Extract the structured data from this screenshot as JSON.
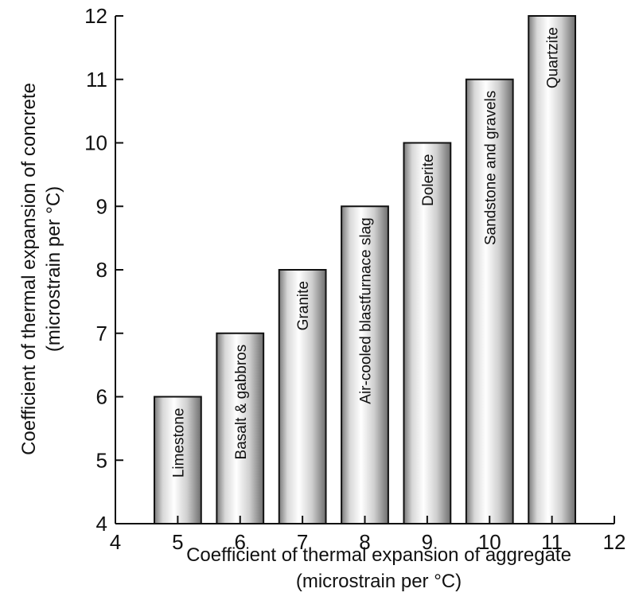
{
  "chart_data": {
    "type": "bar",
    "x": [
      5,
      6,
      7,
      8,
      9,
      10,
      11
    ],
    "values": [
      6,
      7,
      8,
      9,
      10,
      11,
      12
    ],
    "bar_labels": [
      "Limestone",
      "Basalt & gabbros",
      "Granite",
      "Air-cooled blastfurnace slag",
      "Dolerite",
      "Sandstone and gravels",
      "Quartzite"
    ],
    "xlabel": "Coefficient of thermal expansion of aggregate",
    "xlabel_unit": "(microstrain per °C)",
    "ylabel": "Coefficient of thermal expansion of concrete",
    "ylabel_unit": "(microstrain per °C)",
    "xlim": [
      4,
      12
    ],
    "ylim": [
      4,
      12
    ],
    "x_ticks": [
      4,
      5,
      6,
      7,
      8,
      9,
      10,
      11,
      12
    ],
    "y_ticks": [
      4,
      5,
      6,
      7,
      8,
      9,
      10,
      11,
      12
    ],
    "bar_width": 0.75,
    "grid": false,
    "legend": "none",
    "bar_color": "#c8c8c8"
  }
}
